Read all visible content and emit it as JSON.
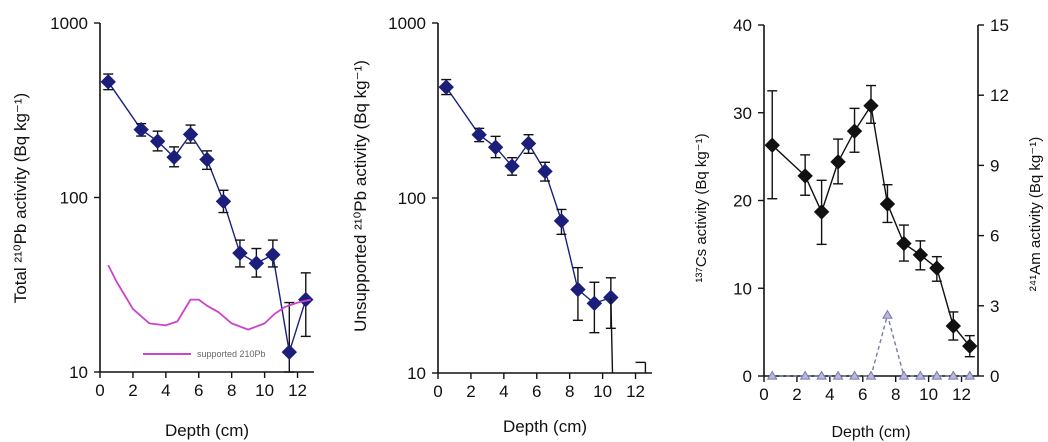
{
  "chart_data": [
    {
      "type": "scatter",
      "yscale": "log",
      "ylabel": "Total ²¹⁰Pb activity (Bq kg⁻¹)",
      "xlabel": "Depth (cm)",
      "xlim": [
        0,
        13
      ],
      "ylim": [
        10,
        1000
      ],
      "xticks": [
        "0",
        "2",
        "4",
        "6",
        "8",
        "10",
        "12"
      ],
      "yticks": [
        "10",
        "100",
        "1000"
      ],
      "series": [
        {
          "name": "",
          "marker": "diamond",
          "color": "#1b1f7a",
          "x": [
            0.5,
            2.5,
            3.5,
            4.5,
            5.5,
            6.5,
            7.5,
            8.5,
            9.5,
            10.5,
            11.5,
            12.5
          ],
          "y": [
            460,
            245,
            210,
            170,
            230,
            165,
            95,
            48,
            42,
            47,
            13,
            26
          ],
          "err_low": [
            415,
            225,
            185,
            150,
            205,
            145,
            82,
            40,
            35,
            40,
            10,
            16
          ],
          "err_high": [
            510,
            265,
            240,
            195,
            260,
            185,
            110,
            57,
            51,
            57,
            25,
            37
          ]
        },
        {
          "name": "supported 210Pb",
          "color": "#cc44cc",
          "x": [
            0.5,
            1.0,
            2.0,
            3.0,
            4.0,
            4.7,
            5.5,
            6.0,
            6.5,
            7.2,
            8.0,
            9.0,
            10.0,
            10.6,
            11.2,
            12.0,
            12.8
          ],
          "y": [
            41,
            33,
            23,
            19,
            18.5,
            19.5,
            26,
            26,
            24,
            22,
            19,
            17.5,
            19,
            21.5,
            23.5,
            25,
            26
          ]
        }
      ]
    },
    {
      "type": "scatter",
      "yscale": "log",
      "ylabel": "Unsupported ²¹⁰Pb activity (Bq kg⁻¹)",
      "xlabel": "Depth (cm)",
      "xlim": [
        0,
        13
      ],
      "ylim": [
        10,
        1000
      ],
      "xticks": [
        "0",
        "2",
        "4",
        "6",
        "8",
        "10",
        "12"
      ],
      "yticks": [
        "10",
        "100",
        "1000"
      ],
      "series": [
        {
          "name": "",
          "marker": "diamond",
          "color": "#1b1f7a",
          "x": [
            0.5,
            2.5,
            3.5,
            4.5,
            5.5,
            6.5,
            7.5,
            8.5,
            9.5,
            10.5
          ],
          "y": [
            430,
            230,
            195,
            152,
            205,
            142,
            74,
            30,
            25,
            27
          ],
          "err_low": [
            390,
            210,
            170,
            135,
            180,
            125,
            62,
            20,
            17,
            18
          ],
          "err_high": [
            475,
            250,
            225,
            170,
            230,
            160,
            86,
            40,
            33,
            35
          ]
        }
      ],
      "extra_segments": [
        {
          "x": [
            10.5,
            10.6
          ],
          "y": [
            27,
            10
          ]
        },
        {
          "x": [
            12.0,
            12.6
          ],
          "y": [
            11.5,
            11.5
          ]
        },
        {
          "x": [
            12.6,
            12.6
          ],
          "y": [
            11.5,
            10
          ]
        }
      ]
    },
    {
      "type": "scatter",
      "ylabel": "¹³⁷Cs activity (Bq kg⁻¹)",
      "y2label": "²⁴¹Am activity (Bq kg⁻¹)",
      "xlabel": "Depth (cm)",
      "xlim": [
        0,
        13
      ],
      "ylim": [
        0,
        40
      ],
      "y2lim": [
        0,
        15
      ],
      "xticks": [
        "0",
        "2",
        "4",
        "6",
        "8",
        "10",
        "12"
      ],
      "yticks": [
        "0",
        "10",
        "20",
        "30",
        "40"
      ],
      "y2ticks": [
        "0",
        "3",
        "6",
        "9",
        "12",
        "15"
      ],
      "series": [
        {
          "name": "",
          "marker": "diamond",
          "color": "#111111",
          "x": [
            0.5,
            2.5,
            3.5,
            4.5,
            5.5,
            6.5,
            7.5,
            8.5,
            9.5,
            10.5,
            11.5,
            12.5
          ],
          "y": [
            26.3,
            22.8,
            18.7,
            24.4,
            27.9,
            30.8,
            19.6,
            15.1,
            13.8,
            12.3,
            5.7,
            3.4
          ],
          "err_low": [
            20.2,
            20.6,
            15.0,
            21.9,
            25.5,
            28.8,
            17.5,
            13.1,
            12.1,
            10.8,
            4.1,
            2.2
          ],
          "err_high": [
            32.5,
            25.2,
            22.3,
            27.0,
            30.5,
            33.1,
            21.8,
            17.2,
            15.4,
            13.6,
            7.3,
            4.6
          ]
        },
        {
          "name": "",
          "axis": "right",
          "marker": "triangle",
          "color": "#7a7aa8",
          "dashed": true,
          "x": [
            0.5,
            2.5,
            3.5,
            4.5,
            5.5,
            6.5,
            7.5,
            8.5,
            9.5,
            10.5,
            11.5,
            12.5
          ],
          "y": [
            0,
            0,
            0,
            0,
            0,
            0,
            2.6,
            0,
            0,
            0,
            0,
            0
          ]
        }
      ]
    }
  ]
}
